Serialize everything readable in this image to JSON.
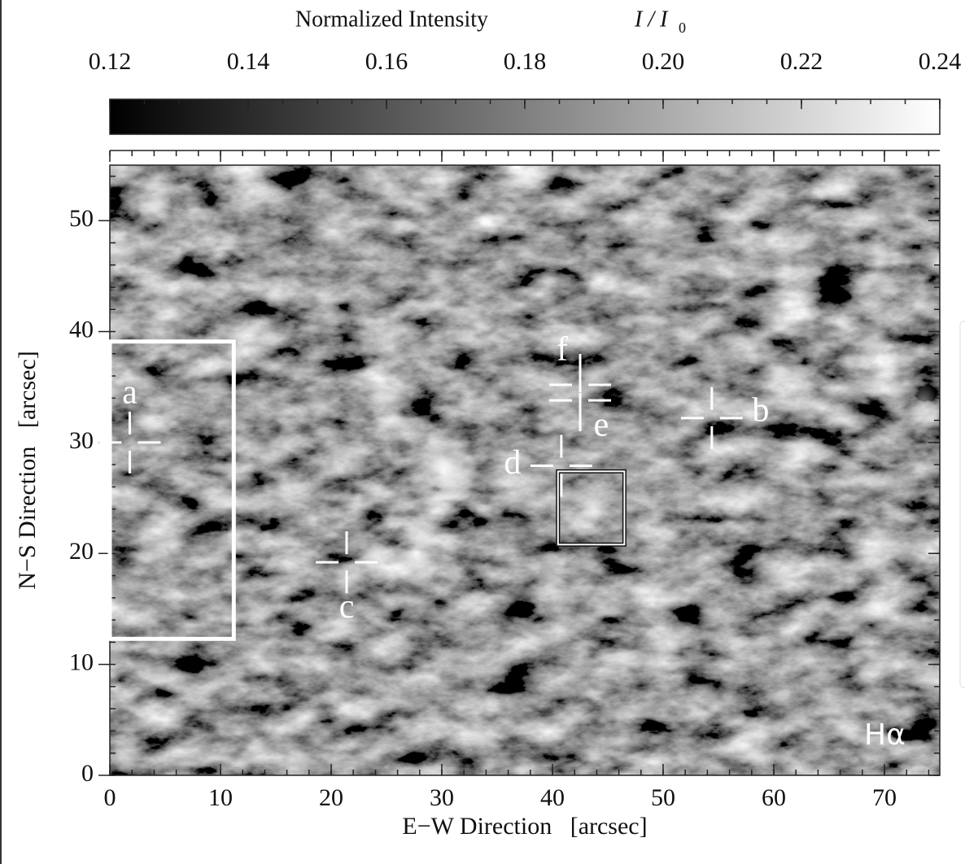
{
  "chart_data": {
    "type": "image",
    "xlabel": "E−W Direction   [arcsec]",
    "ylabel": "N−S Direction   [arcsec]",
    "xlim": [
      0,
      75
    ],
    "ylim": [
      0,
      55
    ],
    "xticks": [
      0,
      10,
      20,
      30,
      40,
      50,
      60,
      70
    ],
    "yticks": [
      0,
      10,
      20,
      30,
      40,
      50
    ],
    "x_minor_step": 2,
    "y_minor_step": 2,
    "colorbar": {
      "label": "Normalized Intensity",
      "symbol": "I / I",
      "symbol_sub": "0",
      "lim": [
        0.12,
        0.24
      ],
      "ticks": [
        0.12,
        0.14,
        0.16,
        0.18,
        {
          "value": 0.2,
          "label": "0.20"
        },
        0.22,
        0.24
      ],
      "minor_step": 0.005
    },
    "annotation": "Hα",
    "points": [
      {
        "name": "a",
        "x": 1.8,
        "y": 30.0
      },
      {
        "name": "b",
        "x": 54.4,
        "y": 32.2
      },
      {
        "name": "c",
        "x": 21.4,
        "y": 19.2
      },
      {
        "name": "d",
        "x": 40.8,
        "y": 27.9
      },
      {
        "name": "e",
        "x": 42.5,
        "y": 33.8
      },
      {
        "name": "f",
        "x": 42.5,
        "y": 35.2
      }
    ],
    "boxes": [
      {
        "xlim": [
          0,
          11.2
        ],
        "ylim": [
          12.3,
          39.1
        ]
      },
      {
        "xlim": [
          40.5,
          46.5
        ],
        "ylim": [
          20.8,
          27.4
        ]
      }
    ]
  }
}
